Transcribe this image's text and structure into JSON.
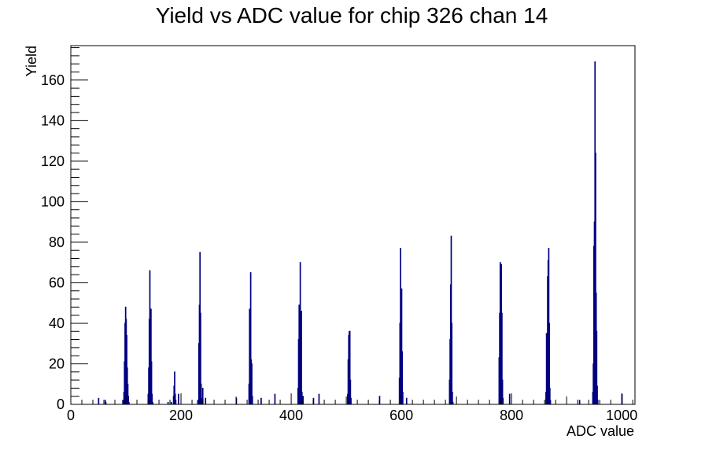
{
  "chart_data": {
    "type": "bar",
    "title": "Yield vs ADC value for chip 326 chan 14",
    "xlabel": "ADC value",
    "ylabel": "Yield",
    "xlim": [
      0,
      1024
    ],
    "ylim": [
      0,
      177
    ],
    "x_ticks": [
      0,
      200,
      400,
      600,
      800,
      1000
    ],
    "y_ticks": [
      0,
      20,
      40,
      60,
      80,
      100,
      120,
      140,
      160
    ],
    "grid": false,
    "legend": "none",
    "color": "#000080",
    "bin_width": 1,
    "points": [
      {
        "x": 50,
        "y": 3
      },
      {
        "x": 62,
        "y": 2
      },
      {
        "x": 63,
        "y": 1
      },
      {
        "x": 94,
        "y": 2
      },
      {
        "x": 96,
        "y": 6
      },
      {
        "x": 97,
        "y": 21
      },
      {
        "x": 98,
        "y": 40
      },
      {
        "x": 99,
        "y": 48
      },
      {
        "x": 100,
        "y": 42
      },
      {
        "x": 101,
        "y": 34
      },
      {
        "x": 102,
        "y": 18
      },
      {
        "x": 103,
        "y": 10
      },
      {
        "x": 104,
        "y": 4
      },
      {
        "x": 105,
        "y": 1
      },
      {
        "x": 140,
        "y": 5
      },
      {
        "x": 141,
        "y": 18
      },
      {
        "x": 142,
        "y": 42
      },
      {
        "x": 143,
        "y": 66
      },
      {
        "x": 144,
        "y": 47
      },
      {
        "x": 145,
        "y": 47
      },
      {
        "x": 146,
        "y": 21
      },
      {
        "x": 147,
        "y": 5
      },
      {
        "x": 148,
        "y": 1
      },
      {
        "x": 176,
        "y": 1
      },
      {
        "x": 182,
        "y": 1
      },
      {
        "x": 186,
        "y": 4
      },
      {
        "x": 187,
        "y": 9
      },
      {
        "x": 188,
        "y": 16
      },
      {
        "x": 189,
        "y": 5
      },
      {
        "x": 190,
        "y": 2
      },
      {
        "x": 195,
        "y": 5
      },
      {
        "x": 230,
        "y": 2
      },
      {
        "x": 232,
        "y": 30
      },
      {
        "x": 233,
        "y": 49
      },
      {
        "x": 234,
        "y": 75
      },
      {
        "x": 235,
        "y": 45
      },
      {
        "x": 236,
        "y": 10
      },
      {
        "x": 237,
        "y": 3
      },
      {
        "x": 239,
        "y": 8
      },
      {
        "x": 244,
        "y": 3
      },
      {
        "x": 300,
        "y": 3
      },
      {
        "x": 323,
        "y": 10
      },
      {
        "x": 324,
        "y": 47
      },
      {
        "x": 325,
        "y": 33
      },
      {
        "x": 326,
        "y": 65
      },
      {
        "x": 327,
        "y": 22
      },
      {
        "x": 328,
        "y": 20
      },
      {
        "x": 329,
        "y": 4
      },
      {
        "x": 345,
        "y": 3
      },
      {
        "x": 370,
        "y": 5
      },
      {
        "x": 412,
        "y": 8
      },
      {
        "x": 413,
        "y": 32
      },
      {
        "x": 414,
        "y": 49
      },
      {
        "x": 415,
        "y": 37
      },
      {
        "x": 416,
        "y": 70
      },
      {
        "x": 417,
        "y": 46
      },
      {
        "x": 418,
        "y": 46
      },
      {
        "x": 419,
        "y": 6
      },
      {
        "x": 421,
        "y": 4
      },
      {
        "x": 440,
        "y": 3
      },
      {
        "x": 450,
        "y": 5
      },
      {
        "x": 502,
        "y": 5
      },
      {
        "x": 503,
        "y": 22
      },
      {
        "x": 504,
        "y": 34
      },
      {
        "x": 505,
        "y": 36
      },
      {
        "x": 506,
        "y": 36
      },
      {
        "x": 507,
        "y": 12
      },
      {
        "x": 508,
        "y": 3
      },
      {
        "x": 560,
        "y": 4
      },
      {
        "x": 596,
        "y": 13
      },
      {
        "x": 597,
        "y": 40
      },
      {
        "x": 598,
        "y": 77
      },
      {
        "x": 599,
        "y": 49
      },
      {
        "x": 600,
        "y": 57
      },
      {
        "x": 601,
        "y": 26
      },
      {
        "x": 602,
        "y": 6
      },
      {
        "x": 609,
        "y": 3
      },
      {
        "x": 687,
        "y": 12
      },
      {
        "x": 688,
        "y": 32
      },
      {
        "x": 689,
        "y": 59
      },
      {
        "x": 690,
        "y": 83
      },
      {
        "x": 691,
        "y": 40
      },
      {
        "x": 692,
        "y": 6
      },
      {
        "x": 693,
        "y": 1
      },
      {
        "x": 777,
        "y": 23
      },
      {
        "x": 778,
        "y": 45
      },
      {
        "x": 779,
        "y": 70
      },
      {
        "x": 780,
        "y": 65
      },
      {
        "x": 781,
        "y": 69
      },
      {
        "x": 782,
        "y": 45
      },
      {
        "x": 783,
        "y": 12
      },
      {
        "x": 784,
        "y": 3
      },
      {
        "x": 796,
        "y": 5
      },
      {
        "x": 862,
        "y": 6
      },
      {
        "x": 863,
        "y": 35
      },
      {
        "x": 864,
        "y": 26
      },
      {
        "x": 865,
        "y": 63
      },
      {
        "x": 866,
        "y": 71
      },
      {
        "x": 867,
        "y": 77
      },
      {
        "x": 868,
        "y": 40
      },
      {
        "x": 869,
        "y": 8
      },
      {
        "x": 870,
        "y": 2
      },
      {
        "x": 923,
        "y": 2
      },
      {
        "x": 947,
        "y": 6
      },
      {
        "x": 948,
        "y": 20
      },
      {
        "x": 949,
        "y": 78
      },
      {
        "x": 950,
        "y": 90
      },
      {
        "x": 951,
        "y": 169
      },
      {
        "x": 952,
        "y": 124
      },
      {
        "x": 953,
        "y": 55
      },
      {
        "x": 954,
        "y": 36
      },
      {
        "x": 955,
        "y": 9
      },
      {
        "x": 956,
        "y": 2
      },
      {
        "x": 1000,
        "y": 5
      }
    ]
  }
}
